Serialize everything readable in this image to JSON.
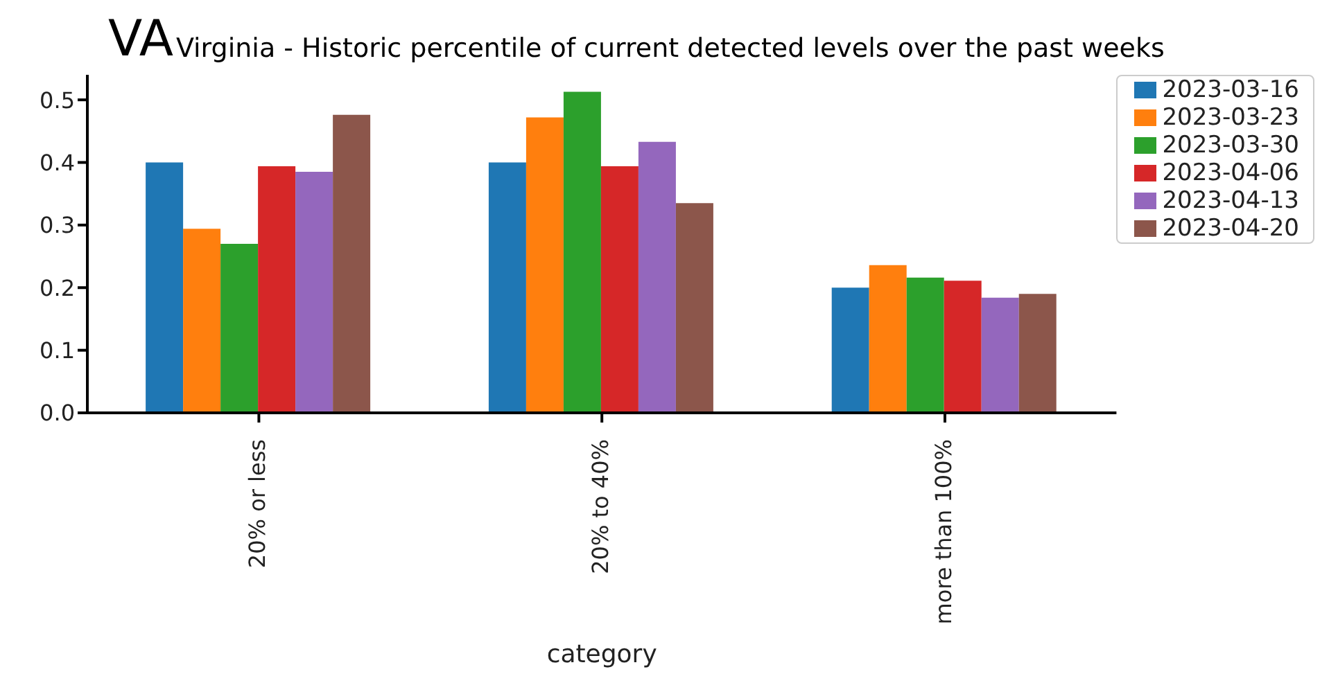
{
  "chart_data": {
    "type": "bar",
    "title": "VA",
    "subtitle": "Virginia - Historic percentile of current detected levels over the past weeks",
    "xlabel": "category",
    "categories": [
      "20% or less",
      "20% to 40%",
      "more than 100%"
    ],
    "series": [
      {
        "name": "2023-03-16",
        "color": "#1f77b4",
        "values": [
          0.4,
          0.4,
          0.2
        ]
      },
      {
        "name": "2023-03-23",
        "color": "#ff7f0e",
        "values": [
          0.294,
          0.472,
          0.236
        ]
      },
      {
        "name": "2023-03-30",
        "color": "#2ca02c",
        "values": [
          0.27,
          0.513,
          0.216
        ]
      },
      {
        "name": "2023-04-06",
        "color": "#d62728",
        "values": [
          0.394,
          0.394,
          0.211
        ]
      },
      {
        "name": "2023-04-13",
        "color": "#9467bd",
        "values": [
          0.385,
          0.433,
          0.184
        ]
      },
      {
        "name": "2023-04-20",
        "color": "#8c564b",
        "values": [
          0.476,
          0.335,
          0.19
        ]
      }
    ],
    "ylim": [
      0,
      0.54
    ],
    "yticks": [
      {
        "value": 0,
        "label": "0.0"
      },
      {
        "value": 0.1,
        "label": "0.1"
      },
      {
        "value": 0.2,
        "label": "0.2"
      },
      {
        "value": 0.3,
        "label": "0.3"
      },
      {
        "value": 0.4,
        "label": "0.4"
      },
      {
        "value": 0.5,
        "label": "0.5"
      }
    ],
    "grid": false,
    "legend": "right"
  }
}
